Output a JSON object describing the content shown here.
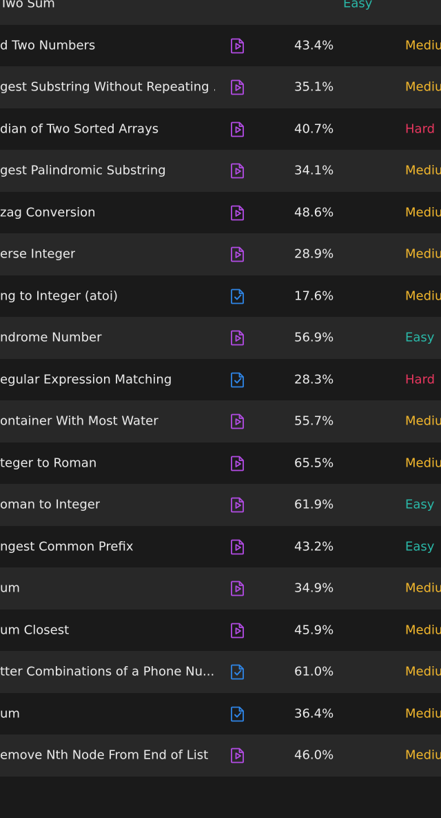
{
  "colors": {
    "easy": "#2ab8a8",
    "medium": "#f2b72d",
    "hard": "#e8375f",
    "video_icon": "#b44ce6",
    "solution_icon": "#2f86e8"
  },
  "problems": [
    {
      "title": "Two Sum",
      "rate": "",
      "difficulty": "Easy",
      "icon": ""
    },
    {
      "title": "d Two Numbers",
      "rate": "43.4%",
      "difficulty": "Mediu",
      "icon": "video-file-icon"
    },
    {
      "title": "gest Substring Without Repeating ...",
      "rate": "35.1%",
      "difficulty": "Mediu",
      "icon": "video-file-icon"
    },
    {
      "title": "dian of Two Sorted Arrays",
      "rate": "40.7%",
      "difficulty": "Hard",
      "icon": "video-file-icon"
    },
    {
      "title": "gest Palindromic Substring",
      "rate": "34.1%",
      "difficulty": "Mediu",
      "icon": "video-file-icon"
    },
    {
      "title": "zag Conversion",
      "rate": "48.6%",
      "difficulty": "Mediu",
      "icon": "video-file-icon"
    },
    {
      "title": "erse Integer",
      "rate": "28.9%",
      "difficulty": "Mediu",
      "icon": "video-file-icon"
    },
    {
      "title": "ng to Integer (atoi)",
      "rate": "17.6%",
      "difficulty": "Mediu",
      "icon": "solution-file-icon"
    },
    {
      "title": "ndrome Number",
      "rate": "56.9%",
      "difficulty": "Easy",
      "icon": "video-file-icon"
    },
    {
      "title": "egular Expression Matching",
      "rate": "28.3%",
      "difficulty": "Hard",
      "icon": "solution-file-icon"
    },
    {
      "title": "ontainer With Most Water",
      "rate": "55.7%",
      "difficulty": "Mediu",
      "icon": "video-file-icon"
    },
    {
      "title": "teger to Roman",
      "rate": "65.5%",
      "difficulty": "Mediu",
      "icon": "video-file-icon"
    },
    {
      "title": "oman to Integer",
      "rate": "61.9%",
      "difficulty": "Easy",
      "icon": "video-file-icon"
    },
    {
      "title": "ngest Common Prefix",
      "rate": "43.2%",
      "difficulty": "Easy",
      "icon": "video-file-icon"
    },
    {
      "title": "um",
      "rate": "34.9%",
      "difficulty": "Mediu",
      "icon": "video-file-icon"
    },
    {
      "title": "um Closest",
      "rate": "45.9%",
      "difficulty": "Mediu",
      "icon": "video-file-icon"
    },
    {
      "title": "tter Combinations of a Phone Nu...",
      "rate": "61.0%",
      "difficulty": "Mediu",
      "icon": "solution-file-icon"
    },
    {
      "title": "um",
      "rate": "36.4%",
      "difficulty": "Mediu",
      "icon": "solution-file-icon"
    },
    {
      "title": "emove Nth Node From End of List",
      "rate": "46.0%",
      "difficulty": "Mediu",
      "icon": "video-file-icon"
    },
    {
      "title": "",
      "rate": "",
      "difficulty": "",
      "icon": ""
    }
  ]
}
